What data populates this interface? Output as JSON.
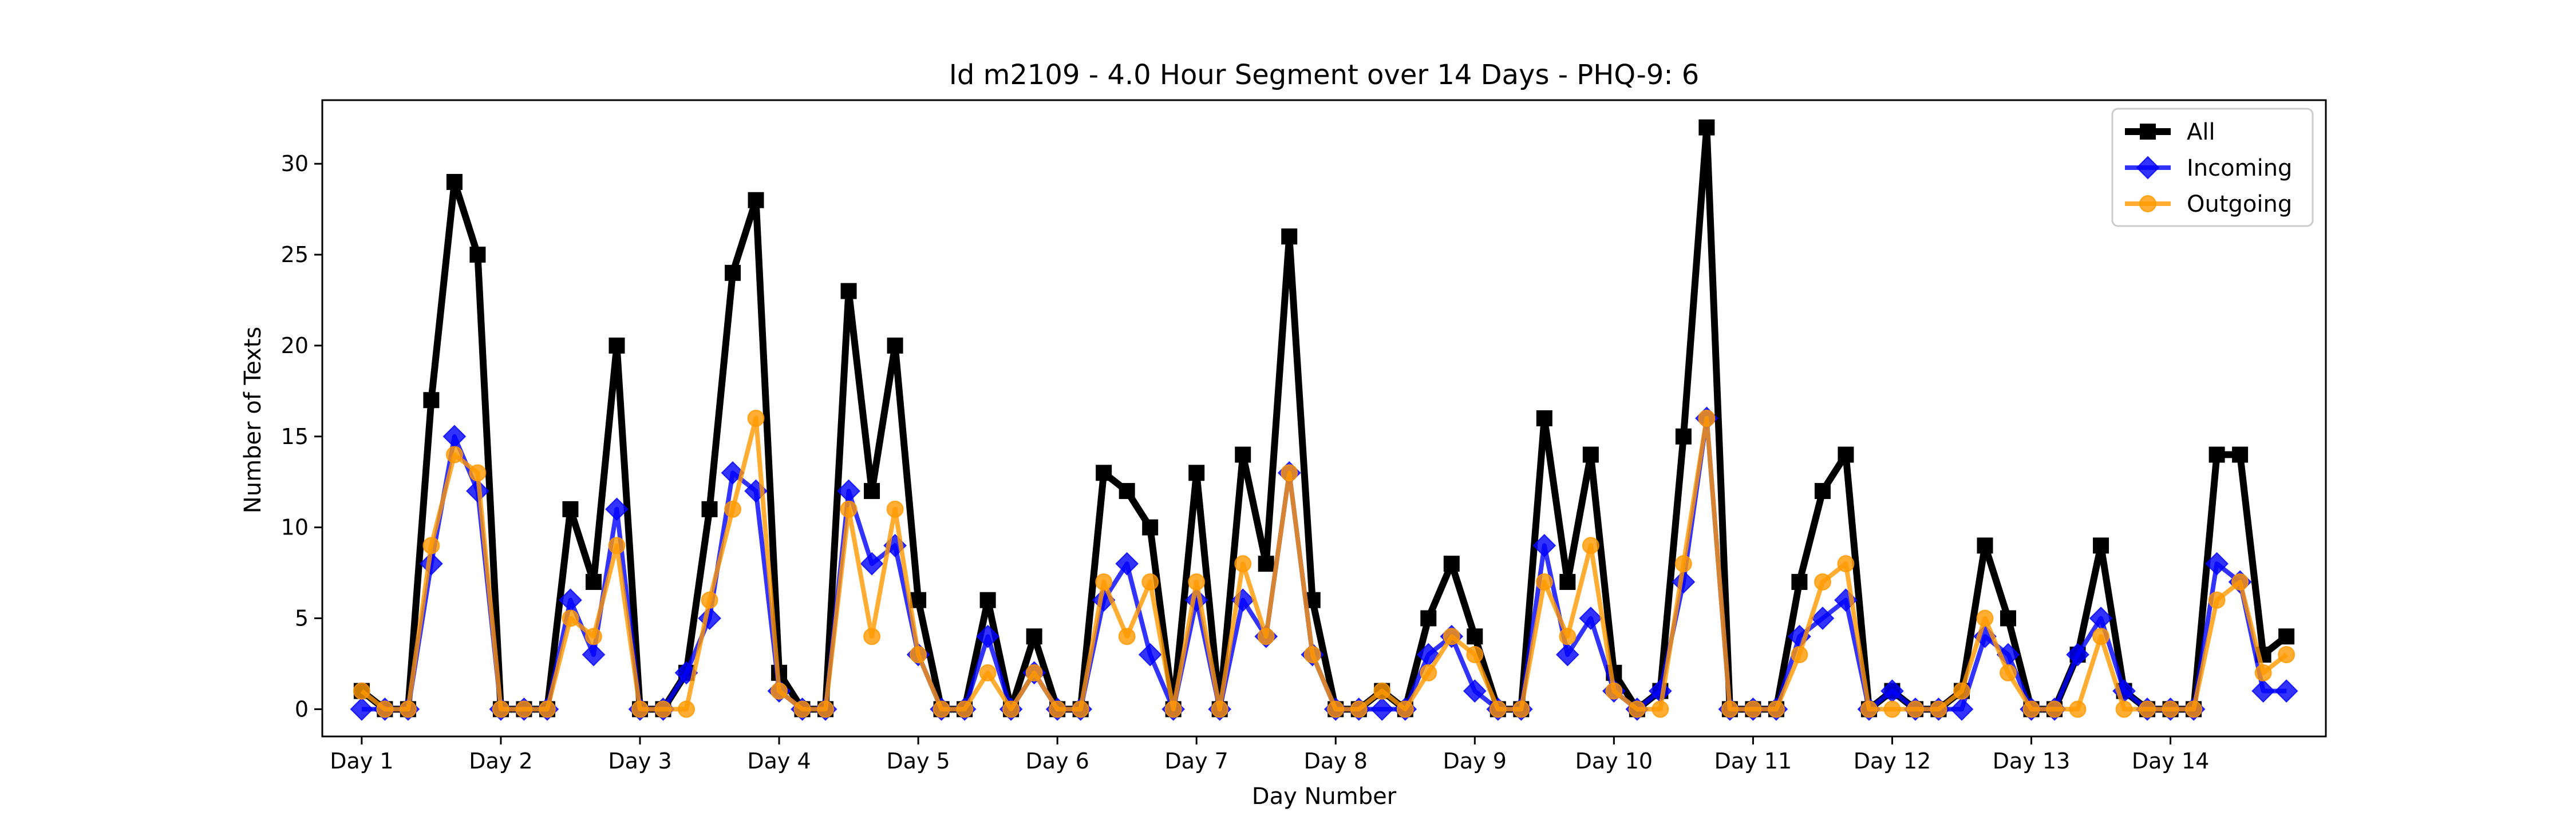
{
  "chart_data": {
    "type": "line",
    "title": "Id m2109 - 4.0 Hour Segment over 14 Days - PHQ-9: 6",
    "xlabel": "Day Number",
    "ylabel": "Number of Texts",
    "ylim": [
      -1.5,
      33.5
    ],
    "xlim": [
      -1.7,
      84.7
    ],
    "yticks": [
      0,
      5,
      10,
      15,
      20,
      25,
      30
    ],
    "xticks": [
      {
        "pos": 0,
        "label": "Day 1"
      },
      {
        "pos": 6,
        "label": "Day 2"
      },
      {
        "pos": 12,
        "label": "Day 3"
      },
      {
        "pos": 18,
        "label": "Day 4"
      },
      {
        "pos": 24,
        "label": "Day 5"
      },
      {
        "pos": 30,
        "label": "Day 6"
      },
      {
        "pos": 36,
        "label": "Day 7"
      },
      {
        "pos": 42,
        "label": "Day 8"
      },
      {
        "pos": 48,
        "label": "Day 9"
      },
      {
        "pos": 54,
        "label": "Day 10"
      },
      {
        "pos": 60,
        "label": "Day 11"
      },
      {
        "pos": 66,
        "label": "Day 12"
      },
      {
        "pos": 72,
        "label": "Day 13"
      },
      {
        "pos": 78,
        "label": "Day 14"
      }
    ],
    "legend_position": "top-right",
    "series": [
      {
        "name": "All",
        "color": "#000000",
        "marker": "square",
        "values": [
          1,
          0,
          0,
          17,
          29,
          25,
          0,
          0,
          0,
          11,
          7,
          20,
          0,
          0,
          2,
          11,
          24,
          28,
          2,
          0,
          0,
          23,
          12,
          20,
          6,
          0,
          0,
          6,
          0,
          4,
          0,
          0,
          13,
          12,
          10,
          0,
          13,
          0,
          14,
          8,
          26,
          6,
          0,
          0,
          1,
          0,
          5,
          8,
          4,
          0,
          0,
          16,
          7,
          14,
          2,
          0,
          1,
          15,
          32,
          0,
          0,
          0,
          7,
          12,
          14,
          0,
          1,
          0,
          0,
          1,
          9,
          5,
          0,
          0,
          3,
          9,
          1,
          0,
          0,
          0,
          14,
          14,
          3,
          4
        ]
      },
      {
        "name": "Incoming",
        "color": "#0000ff",
        "marker": "diamond",
        "values": [
          0,
          0,
          0,
          8,
          15,
          12,
          0,
          0,
          0,
          6,
          3,
          11,
          0,
          0,
          2,
          5,
          13,
          12,
          1,
          0,
          0,
          12,
          8,
          9,
          3,
          0,
          0,
          4,
          0,
          2,
          0,
          0,
          6,
          8,
          3,
          0,
          6,
          0,
          6,
          4,
          13,
          3,
          0,
          0,
          0,
          0,
          3,
          4,
          1,
          0,
          0,
          9,
          3,
          5,
          1,
          0,
          1,
          7,
          16,
          0,
          0,
          0,
          4,
          5,
          6,
          0,
          1,
          0,
          0,
          0,
          4,
          3,
          0,
          0,
          3,
          5,
          1,
          0,
          0,
          0,
          8,
          7,
          1,
          1
        ]
      },
      {
        "name": "Outgoing",
        "color": "#ff9900",
        "marker": "circle",
        "values": [
          1,
          0,
          0,
          9,
          14,
          13,
          0,
          0,
          0,
          5,
          4,
          9,
          0,
          0,
          0,
          6,
          11,
          16,
          1,
          0,
          0,
          11,
          4,
          11,
          3,
          0,
          0,
          2,
          0,
          2,
          0,
          0,
          7,
          4,
          7,
          0,
          7,
          0,
          8,
          4,
          13,
          3,
          0,
          0,
          1,
          0,
          2,
          4,
          3,
          0,
          0,
          7,
          4,
          9,
          1,
          0,
          0,
          8,
          16,
          0,
          0,
          0,
          3,
          7,
          8,
          0,
          0,
          0,
          0,
          1,
          5,
          2,
          0,
          0,
          0,
          4,
          0,
          0,
          0,
          0,
          6,
          7,
          2,
          3
        ]
      }
    ]
  }
}
